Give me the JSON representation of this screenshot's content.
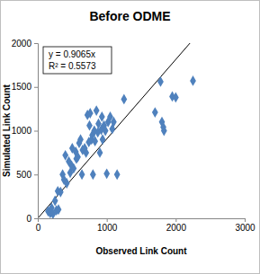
{
  "chart_data": {
    "type": "scatter",
    "title": "Before ODME",
    "x_label": "Observed Link Count",
    "y_label": "Simulated Link Count",
    "x": [
      150,
      180,
      200,
      220,
      250,
      270,
      290,
      300,
      330,
      360,
      380,
      400,
      420,
      450,
      470,
      490,
      500,
      520,
      550,
      560,
      580,
      600,
      620,
      640,
      650,
      680,
      700,
      720,
      740,
      750,
      760,
      780,
      790,
      800,
      820,
      830,
      850,
      870,
      880,
      900,
      920,
      930,
      940,
      960,
      980,
      1000,
      1020,
      1050,
      1080,
      1100,
      1150,
      1250,
      1700,
      1780,
      1800,
      1820,
      1830,
      1950,
      2000,
      2250
    ],
    "values": [
      80,
      60,
      120,
      50,
      200,
      90,
      310,
      100,
      300,
      500,
      440,
      720,
      400,
      650,
      520,
      600,
      800,
      570,
      760,
      680,
      700,
      860,
      900,
      500,
      780,
      800,
      750,
      1180,
      870,
      1060,
      1200,
      900,
      950,
      500,
      1000,
      880,
      1230,
      980,
      1080,
      750,
      1010,
      1160,
      900,
      1060,
      1000,
      510,
      1100,
      1160,
      1020,
      1100,
      500,
      1360,
      1210,
      1560,
      1100,
      1040,
      1000,
      1390,
      1380,
      1570
    ],
    "color": "#4f81bd",
    "marker": "diamond",
    "trendline_slope": 0.9065,
    "annotations": [
      "y = 0.9065x",
      "R² = 0.5573"
    ],
    "xlim": [
      0,
      3000
    ],
    "xticks": [
      0,
      1000,
      2000,
      3000
    ],
    "ylim": [
      0,
      2000
    ],
    "yticks": [
      0,
      500,
      1000,
      1500,
      2000
    ],
    "grid": false
  }
}
